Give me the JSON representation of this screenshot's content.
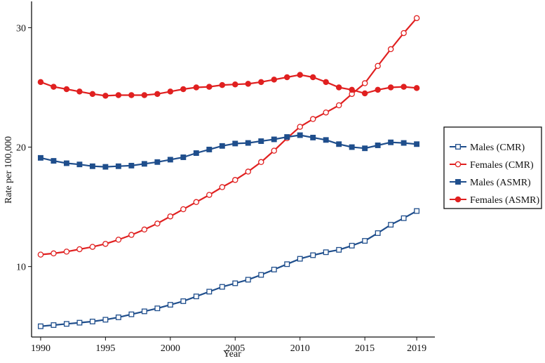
{
  "chart_data": {
    "type": "line",
    "xlabel": "Year",
    "ylabel": "Rate per 100,000",
    "xlim": [
      1989.3,
      2020.4
    ],
    "ylim": [
      4.1,
      32.2
    ],
    "x_ticks": [
      1990,
      1995,
      2000,
      2005,
      2010,
      2015,
      2019
    ],
    "y_ticks": [
      10,
      20,
      30
    ],
    "grid": false,
    "legend_position": "right",
    "x": [
      1990,
      1991,
      1992,
      1993,
      1994,
      1995,
      1996,
      1997,
      1998,
      1999,
      2000,
      2001,
      2002,
      2003,
      2004,
      2005,
      2006,
      2007,
      2008,
      2009,
      2010,
      2011,
      2012,
      2013,
      2014,
      2015,
      2016,
      2017,
      2018,
      2019
    ],
    "series": [
      {
        "name": "Males (CMR)",
        "color": "#1f4e8c",
        "marker": "square-open",
        "values": [
          5.0,
          5.1,
          5.2,
          5.3,
          5.4,
          5.55,
          5.75,
          6.0,
          6.25,
          6.5,
          6.8,
          7.1,
          7.5,
          7.9,
          8.3,
          8.6,
          8.9,
          9.3,
          9.75,
          10.2,
          10.65,
          10.95,
          11.2,
          11.4,
          11.75,
          12.15,
          12.8,
          13.5,
          14.05,
          14.65
        ]
      },
      {
        "name": "Females (CMR)",
        "color": "#e02020",
        "marker": "circle-open",
        "values": [
          11.0,
          11.1,
          11.25,
          11.45,
          11.65,
          11.9,
          12.25,
          12.65,
          13.1,
          13.6,
          14.2,
          14.8,
          15.4,
          16.0,
          16.65,
          17.25,
          17.95,
          18.75,
          19.7,
          20.75,
          21.7,
          22.35,
          22.9,
          23.5,
          24.45,
          25.35,
          26.8,
          28.2,
          29.55,
          30.8
        ]
      },
      {
        "name": "Males (ASMR)",
        "color": "#1f4e8c",
        "marker": "square-filled",
        "values": [
          19.1,
          18.85,
          18.65,
          18.55,
          18.4,
          18.35,
          18.4,
          18.45,
          18.6,
          18.75,
          18.95,
          19.15,
          19.5,
          19.8,
          20.1,
          20.3,
          20.35,
          20.5,
          20.65,
          20.85,
          21.0,
          20.8,
          20.6,
          20.25,
          20.0,
          19.9,
          20.15,
          20.4,
          20.35,
          20.25
        ]
      },
      {
        "name": "Females (ASMR)",
        "color": "#e02020",
        "marker": "circle-filled",
        "values": [
          25.45,
          25.05,
          24.85,
          24.65,
          24.45,
          24.3,
          24.35,
          24.35,
          24.35,
          24.45,
          24.65,
          24.85,
          25.0,
          25.05,
          25.2,
          25.25,
          25.3,
          25.45,
          25.65,
          25.85,
          26.05,
          25.85,
          25.45,
          25.0,
          24.8,
          24.5,
          24.8,
          25.0,
          25.05,
          24.95
        ]
      }
    ]
  }
}
